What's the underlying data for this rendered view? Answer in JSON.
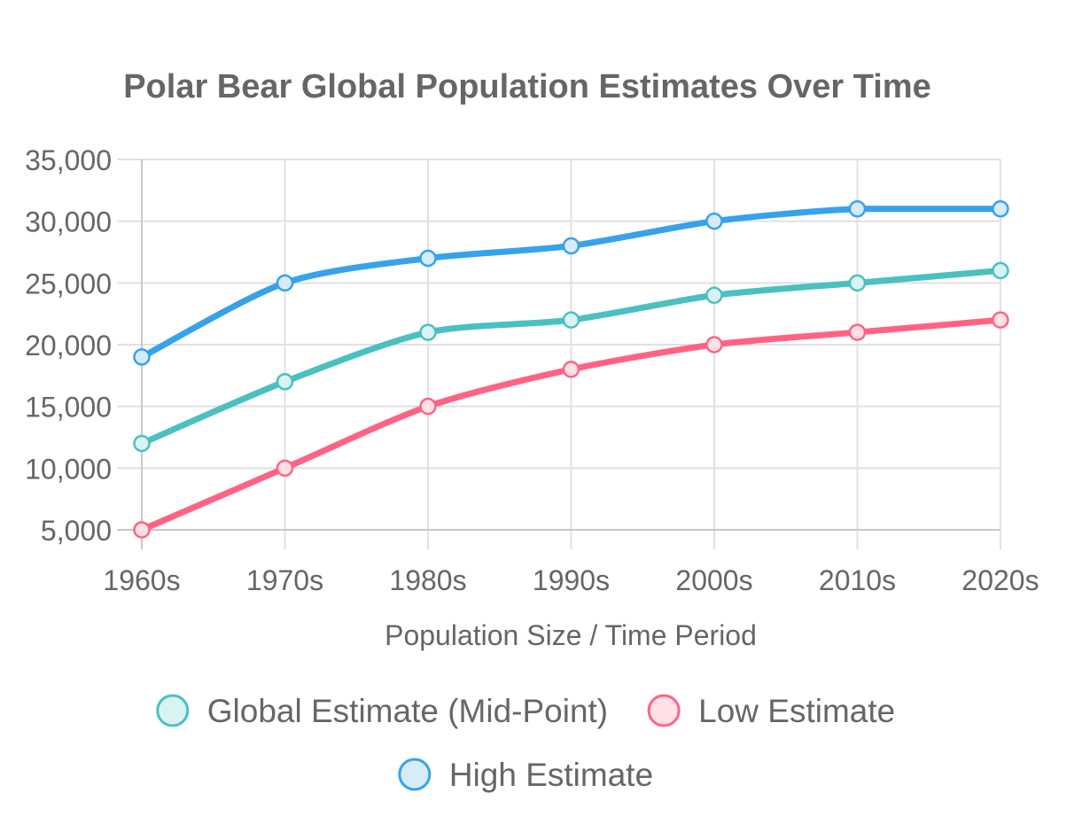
{
  "chart_data": {
    "type": "line",
    "title": "Polar Bear Global Population Estimates Over Time",
    "xlabel": "Population Size / Time Period",
    "ylabel": "",
    "categories": [
      "1960s",
      "1970s",
      "1980s",
      "1990s",
      "2000s",
      "2010s",
      "2020s"
    ],
    "ylim": [
      5000,
      35000
    ],
    "yticks": [
      5000,
      10000,
      15000,
      20000,
      25000,
      30000,
      35000
    ],
    "ytick_labels": [
      "5,000",
      "10,000",
      "15,000",
      "20,000",
      "25,000",
      "30,000",
      "35,000"
    ],
    "grid": true,
    "legend_position": "bottom",
    "series": [
      {
        "name": "Global Estimate (Mid-Point)",
        "color": "#4bc0c0",
        "fill": "#d9f2f2",
        "values": [
          12000,
          17000,
          21000,
          22000,
          24000,
          25000,
          26000
        ]
      },
      {
        "name": "Low Estimate",
        "color": "#ff6384",
        "fill": "#ffe0e6",
        "values": [
          5000,
          10000,
          15000,
          18000,
          20000,
          21000,
          22000
        ]
      },
      {
        "name": "High Estimate",
        "color": "#36a2eb",
        "fill": "#d7ecfb",
        "values": [
          19000,
          25000,
          27000,
          28000,
          30000,
          31000,
          31000
        ]
      }
    ]
  }
}
